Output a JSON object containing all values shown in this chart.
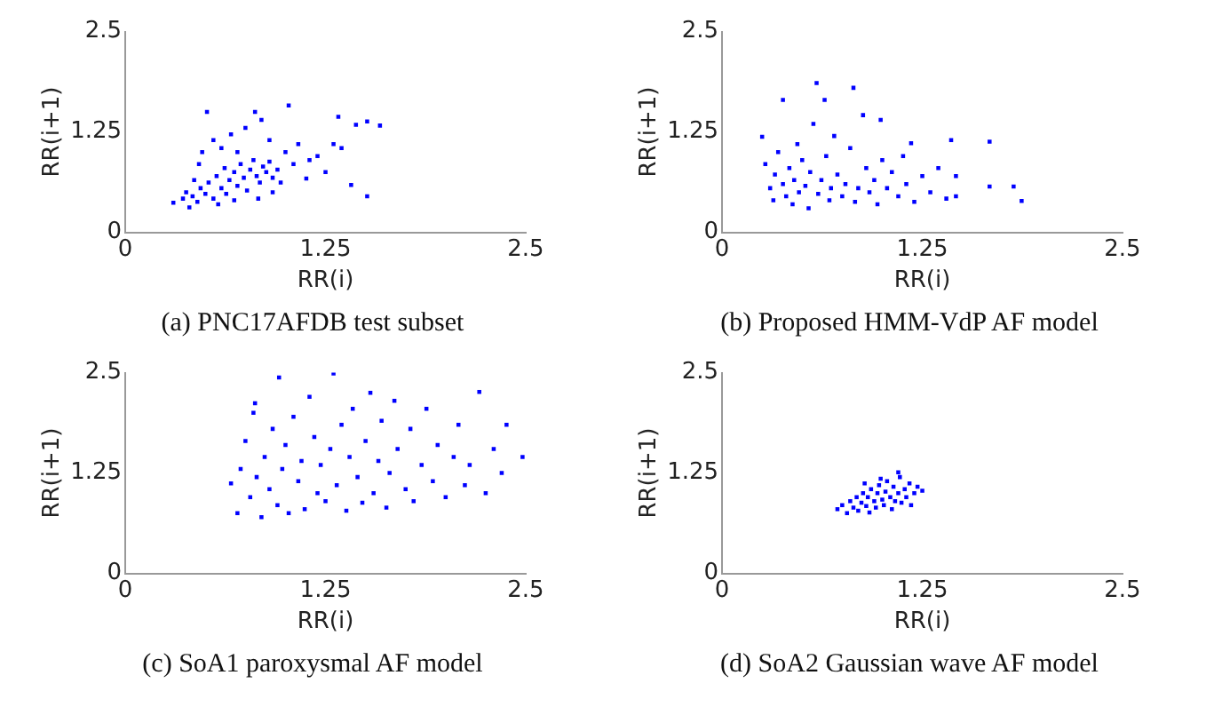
{
  "chart_data": [
    {
      "type": "scatter",
      "title": "(a) PNC17AFDB test subset",
      "xlabel": "RR(i)",
      "ylabel": "RR(i+1)",
      "xlim": [
        0,
        2.5
      ],
      "ylim": [
        0,
        2.5
      ],
      "xticks": [
        0,
        1.25,
        2.5
      ],
      "yticks": [
        0,
        1.25,
        2.5
      ],
      "grid": false,
      "legend": false,
      "marker": "square",
      "series": [
        {
          "color": "#0000ff",
          "x": [
            0.3,
            0.4,
            0.36,
            0.38,
            0.42,
            0.45,
            0.47,
            0.5,
            0.52,
            0.55,
            0.57,
            0.6,
            0.62,
            0.63,
            0.65,
            0.68,
            0.7,
            0.72,
            0.74,
            0.76,
            0.78,
            0.8,
            0.82,
            0.84,
            0.86,
            0.88,
            0.9,
            0.92,
            0.95,
            0.97,
            0.43,
            0.46,
            0.48,
            0.51,
            0.55,
            0.6,
            0.66,
            0.7,
            0.75,
            0.81,
            0.85,
            0.9,
            1.0,
            1.02,
            1.05,
            1.08,
            1.13,
            1.15,
            1.2,
            1.25,
            1.3,
            1.33,
            1.35,
            1.41,
            1.44,
            1.51,
            1.51,
            1.59,
            0.68,
            0.58,
            0.83,
            0.92
          ],
          "values": [
            0.37,
            0.31,
            0.42,
            0.5,
            0.45,
            0.38,
            0.55,
            0.48,
            0.62,
            0.42,
            0.7,
            0.55,
            0.8,
            0.48,
            0.65,
            0.75,
            0.58,
            0.85,
            0.68,
            0.52,
            0.78,
            0.9,
            0.7,
            0.62,
            0.82,
            0.75,
            0.88,
            0.68,
            0.78,
            0.62,
            0.65,
            0.85,
            1.0,
            1.5,
            1.15,
            1.05,
            1.22,
            1.0,
            1.3,
            1.5,
            1.4,
            1.15,
            1.0,
            1.58,
            0.85,
            1.1,
            0.67,
            0.9,
            0.95,
            0.75,
            1.1,
            1.44,
            1.05,
            0.59,
            1.34,
            1.38,
            0.45,
            1.33,
            0.4,
            0.35,
            0.42,
            0.5
          ]
        }
      ]
    },
    {
      "type": "scatter",
      "title": "(b) Proposed HMM-VdP AF model",
      "xlabel": "RR(i)",
      "ylabel": "RR(i+1)",
      "xlim": [
        0,
        2.5
      ],
      "ylim": [
        0,
        2.5
      ],
      "xticks": [
        0,
        1.25,
        2.5
      ],
      "yticks": [
        0,
        1.25,
        2.5
      ],
      "grid": false,
      "legend": false,
      "marker": "square",
      "series": [
        {
          "color": "#0000ff",
          "x": [
            0.25,
            0.27,
            0.3,
            0.32,
            0.33,
            0.35,
            0.38,
            0.38,
            0.4,
            0.42,
            0.44,
            0.45,
            0.47,
            0.48,
            0.5,
            0.52,
            0.54,
            0.55,
            0.57,
            0.59,
            0.6,
            0.62,
            0.64,
            0.65,
            0.67,
            0.68,
            0.7,
            0.72,
            0.75,
            0.77,
            0.8,
            0.82,
            0.83,
            0.85,
            0.88,
            0.9,
            0.92,
            0.95,
            0.97,
            0.99,
            1.0,
            1.03,
            1.06,
            1.1,
            1.13,
            1.15,
            1.18,
            1.2,
            1.25,
            1.3,
            1.35,
            1.4,
            1.43,
            1.46,
            1.46,
            1.67,
            1.67,
            1.82,
            1.87
          ],
          "values": [
            1.19,
            0.85,
            0.55,
            0.4,
            0.72,
            1.0,
            1.65,
            0.6,
            0.45,
            0.8,
            0.35,
            0.65,
            1.1,
            0.5,
            0.9,
            0.58,
            0.3,
            0.75,
            1.35,
            1.86,
            0.48,
            0.65,
            1.65,
            0.95,
            0.4,
            0.55,
            1.2,
            0.72,
            0.45,
            0.6,
            1.05,
            1.8,
            0.38,
            0.55,
            1.46,
            0.8,
            0.5,
            0.65,
            0.35,
            1.4,
            0.9,
            0.55,
            0.75,
            0.45,
            0.95,
            0.6,
            1.11,
            0.38,
            0.7,
            0.5,
            0.8,
            0.42,
            1.15,
            0.45,
            0.7,
            1.13,
            0.57,
            0.57,
            0.39
          ]
        }
      ]
    },
    {
      "type": "scatter",
      "title": "(c) SoA1 paroxysmal AF model",
      "xlabel": "RR(i)",
      "ylabel": "RR(i+1)",
      "xlim": [
        0,
        2.5
      ],
      "ylim": [
        0,
        2.5
      ],
      "xticks": [
        0,
        1.25,
        2.5
      ],
      "yticks": [
        0,
        1.25,
        2.5
      ],
      "grid": false,
      "legend": false,
      "marker": "square",
      "series": [
        {
          "color": "#0000ff",
          "x": [
            0.66,
            0.7,
            0.72,
            0.75,
            0.78,
            0.8,
            0.81,
            0.82,
            0.85,
            0.87,
            0.9,
            0.92,
            0.95,
            0.96,
            0.98,
            1.0,
            1.02,
            1.05,
            1.08,
            1.1,
            1.12,
            1.15,
            1.18,
            1.2,
            1.22,
            1.25,
            1.28,
            1.3,
            1.32,
            1.35,
            1.38,
            1.4,
            1.42,
            1.45,
            1.48,
            1.5,
            1.53,
            1.55,
            1.58,
            1.6,
            1.63,
            1.65,
            1.68,
            1.7,
            1.75,
            1.78,
            1.8,
            1.85,
            1.88,
            1.92,
            1.95,
            2.0,
            2.05,
            2.08,
            2.12,
            2.15,
            2.21,
            2.25,
            2.3,
            2.35,
            2.38,
            2.48
          ],
          "values": [
            1.12,
            0.75,
            1.3,
            1.65,
            0.95,
            2.0,
            2.12,
            1.2,
            0.7,
            1.45,
            1.05,
            1.8,
            0.85,
            2.44,
            1.3,
            1.6,
            0.75,
            1.95,
            1.15,
            1.4,
            0.8,
            2.2,
            1.7,
            1.0,
            1.35,
            0.9,
            1.55,
            2.49,
            1.1,
            1.85,
            0.78,
            1.45,
            2.05,
            1.2,
            0.88,
            1.65,
            2.25,
            1.0,
            1.4,
            1.9,
            0.82,
            1.25,
            2.15,
            1.55,
            1.05,
            1.8,
            0.9,
            1.35,
            2.05,
            1.15,
            1.6,
            0.95,
            1.45,
            1.85,
            1.1,
            1.35,
            2.26,
            1.0,
            1.55,
            1.25,
            1.85,
            1.45
          ]
        }
      ]
    },
    {
      "type": "scatter",
      "title": "(d) SoA2 Gaussian wave AF model",
      "xlabel": "RR(i)",
      "ylabel": "RR(i+1)",
      "xlim": [
        0,
        2.5
      ],
      "ylim": [
        0,
        2.5
      ],
      "xticks": [
        0,
        1.25,
        2.5
      ],
      "yticks": [
        0,
        1.25,
        2.5
      ],
      "grid": false,
      "legend": false,
      "marker": "square",
      "series": [
        {
          "color": "#0000ff",
          "x": [
            0.72,
            0.75,
            0.78,
            0.8,
            0.82,
            0.84,
            0.85,
            0.87,
            0.88,
            0.9,
            0.91,
            0.92,
            0.93,
            0.95,
            0.96,
            0.97,
            0.98,
            1.0,
            1.01,
            1.02,
            1.03,
            1.05,
            1.06,
            1.07,
            1.08,
            1.1,
            1.11,
            1.12,
            1.14,
            1.15,
            1.17,
            1.18,
            1.2,
            1.22,
            1.25,
            1.1,
            0.99,
            0.89
          ],
          "values": [
            0.8,
            0.85,
            0.75,
            0.9,
            0.82,
            0.95,
            0.78,
            0.88,
            1.0,
            0.84,
            0.95,
            0.76,
            1.05,
            0.9,
            0.82,
            1.0,
            1.1,
            0.92,
            0.85,
            1.02,
            1.15,
            0.95,
            0.8,
            1.08,
            0.9,
            1.0,
            1.2,
            0.88,
            1.05,
            0.95,
            1.12,
            0.85,
            1.0,
            1.08,
            1.03,
            1.26,
            1.18,
            1.12
          ]
        }
      ]
    }
  ]
}
